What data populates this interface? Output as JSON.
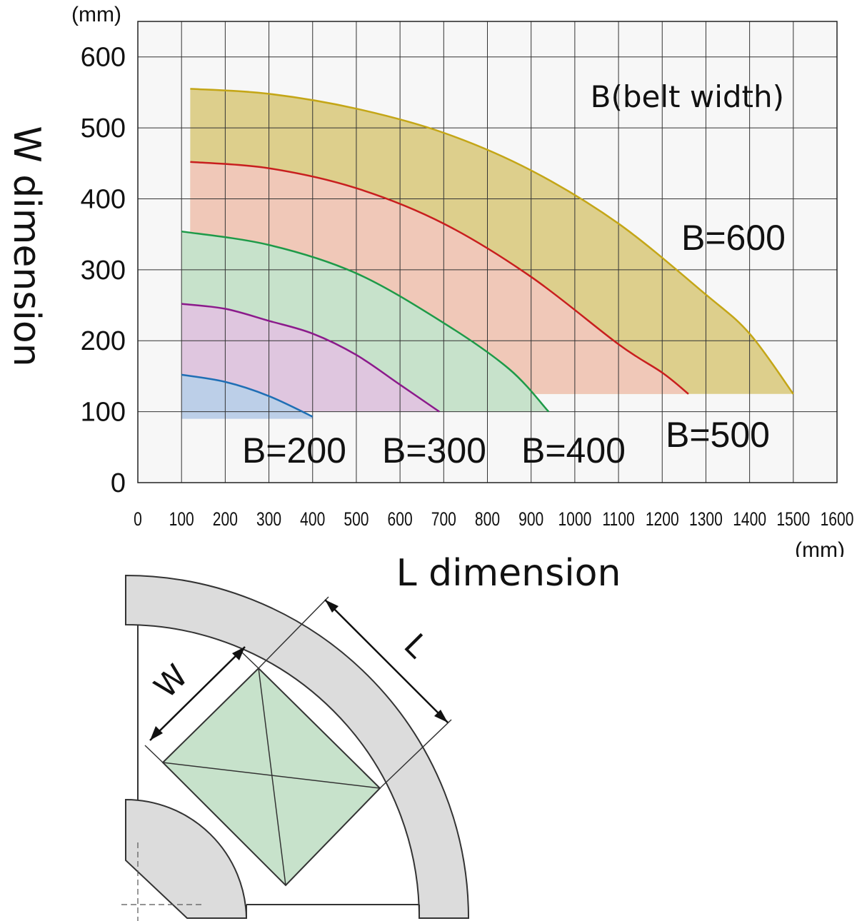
{
  "chart_data": {
    "type": "area",
    "title": "",
    "xlabel": "L dimension",
    "ylabel": "W dimension",
    "x_unit": "(mm)",
    "y_unit": "(mm)",
    "xlim": [
      0,
      1600
    ],
    "ylim": [
      0,
      650
    ],
    "x_ticks": [
      0,
      100,
      200,
      300,
      400,
      500,
      600,
      700,
      800,
      900,
      1000,
      1100,
      1200,
      1300,
      1400,
      1500,
      1600
    ],
    "y_ticks": [
      0,
      100,
      200,
      300,
      400,
      500,
      600
    ],
    "grid": true,
    "legend_title": "B(belt width)",
    "series": [
      {
        "name": "B=200",
        "color": "#1f6fb5",
        "fill": "#bccfe8",
        "baseline": 90,
        "points": [
          [
            100,
            152
          ],
          [
            200,
            142
          ],
          [
            300,
            122
          ],
          [
            400,
            93
          ]
        ]
      },
      {
        "name": "B=300",
        "color": "#8b1a8b",
        "fill": "#dfc6df",
        "baseline": 100,
        "points": [
          [
            100,
            252
          ],
          [
            200,
            245
          ],
          [
            300,
            228
          ],
          [
            400,
            210
          ],
          [
            500,
            180
          ],
          [
            600,
            138
          ],
          [
            690,
            100
          ]
        ]
      },
      {
        "name": "B=400",
        "color": "#1e9a48",
        "fill": "#c7e2cb",
        "baseline": 100,
        "points": [
          [
            100,
            354
          ],
          [
            300,
            335
          ],
          [
            500,
            295
          ],
          [
            700,
            225
          ],
          [
            850,
            160
          ],
          [
            940,
            100
          ]
        ]
      },
      {
        "name": "B=500",
        "color": "#c81e1e",
        "fill": "#f0c8b8",
        "baseline": 125,
        "points": [
          [
            120,
            452
          ],
          [
            300,
            443
          ],
          [
            500,
            415
          ],
          [
            700,
            365
          ],
          [
            900,
            290
          ],
          [
            1100,
            195
          ],
          [
            1200,
            155
          ],
          [
            1260,
            125
          ]
        ]
      },
      {
        "name": "B=600",
        "color": "#c4a617",
        "fill": "#ddcf8c",
        "baseline": 125,
        "points": [
          [
            120,
            555
          ],
          [
            300,
            548
          ],
          [
            500,
            527
          ],
          [
            700,
            493
          ],
          [
            900,
            440
          ],
          [
            1100,
            365
          ],
          [
            1300,
            265
          ],
          [
            1400,
            210
          ],
          [
            1500,
            125
          ]
        ]
      }
    ]
  },
  "diagram": {
    "w_label": "W",
    "l_label": "L"
  }
}
